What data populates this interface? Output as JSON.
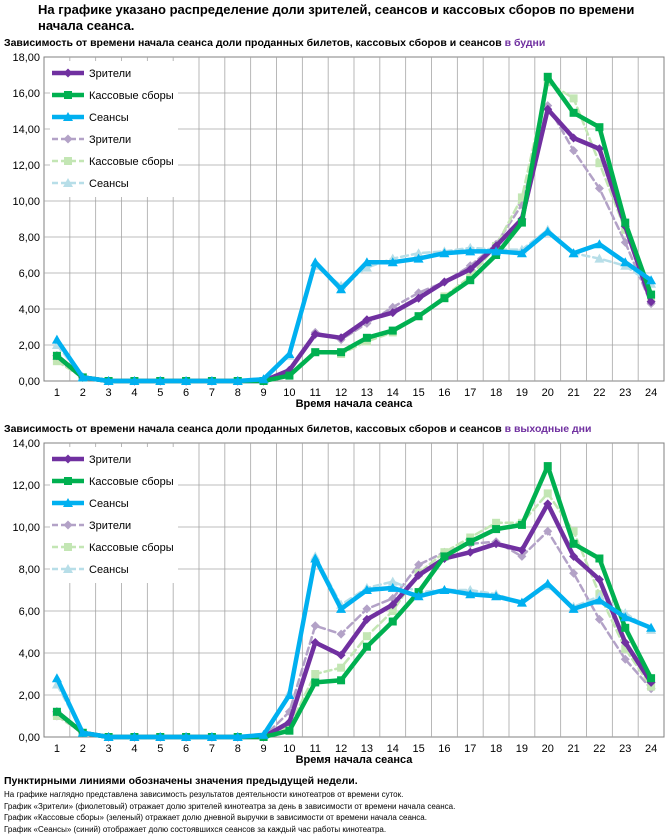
{
  "page": {
    "title": "На графике указано распределение доли зрителей, сеансов и кассовых сборов по времени начала сеанса."
  },
  "footnotes": {
    "bold": "Пунктирными линиями обозначены значения предыдущей недели.",
    "lines": [
      "На графике наглядно представлена зависимость результатов деятельности кинотеатров от времени суток.",
      "График «Зрители» (фиолетовый)  отражает долю зрителей кинотеатра за день в зависимости от времени  начала сеанса.",
      "График «Кассовые сборы» (зеленый) отражает долю дневной выручки в зависимости от времени начала сеанса.",
      "График «Сеансы» (синий) отображает долю состоявшихся сеансов  за каждый час работы кинотеатра."
    ]
  },
  "colors": {
    "viewers": "#7030a0",
    "box_office": "#00b050",
    "sessions": "#00b0f0",
    "viewers_prev": "#b3a2c7",
    "box_office_prev": "#c3e6b4",
    "sessions_prev": "#b7dee8",
    "highlight": "#7030a0"
  },
  "chart_data": [
    {
      "type": "line",
      "title": "Зависимость от времени начала сеанса доли проданных билетов, кассовых сборов и сеансов",
      "title_highlight": "в будни",
      "xlabel": "Время начала сеанса",
      "ylabel": "",
      "ylim": [
        0,
        18
      ],
      "yticks": [
        "0,00",
        "2,00",
        "4,00",
        "6,00",
        "8,00",
        "10,00",
        "12,00",
        "14,00",
        "16,00",
        "18,00"
      ],
      "grid": true,
      "legend_position": "top-left",
      "x": [
        1,
        2,
        3,
        4,
        5,
        6,
        7,
        8,
        9,
        10,
        11,
        12,
        13,
        14,
        15,
        16,
        17,
        18,
        19,
        20,
        21,
        22,
        23,
        24
      ],
      "series": [
        {
          "name": "Зрители",
          "style": "solid",
          "color_key": "viewers",
          "marker": "diamond",
          "values": [
            1.4,
            0.2,
            0.0,
            0.0,
            0.0,
            0.0,
            0.0,
            0.0,
            0.0,
            0.6,
            2.6,
            2.4,
            3.4,
            3.8,
            4.6,
            5.5,
            6.2,
            7.5,
            9.0,
            15.1,
            13.5,
            12.9,
            8.6,
            4.4
          ]
        },
        {
          "name": "Кассовые сборы",
          "style": "solid",
          "color_key": "box_office",
          "marker": "square",
          "values": [
            1.4,
            0.2,
            0.0,
            0.0,
            0.0,
            0.0,
            0.0,
            0.0,
            0.0,
            0.3,
            1.6,
            1.6,
            2.4,
            2.8,
            3.6,
            4.6,
            5.6,
            7.0,
            8.8,
            16.9,
            14.9,
            14.1,
            8.8,
            4.8
          ]
        },
        {
          "name": "Сеансы",
          "style": "solid",
          "color_key": "sessions",
          "marker": "triangle",
          "values": [
            2.3,
            0.2,
            0.0,
            0.0,
            0.0,
            0.0,
            0.0,
            0.0,
            0.1,
            1.5,
            6.6,
            5.1,
            6.6,
            6.6,
            6.8,
            7.1,
            7.2,
            7.2,
            7.1,
            8.3,
            7.1,
            7.6,
            6.6,
            5.6
          ]
        },
        {
          "name": "Зрители",
          "style": "dashed",
          "color_key": "viewers_prev",
          "marker": "diamond",
          "values": [
            1.2,
            0.2,
            0.0,
            0.0,
            0.0,
            0.0,
            0.0,
            0.0,
            0.0,
            0.6,
            2.7,
            2.3,
            3.2,
            4.1,
            4.9,
            5.5,
            6.4,
            7.6,
            9.8,
            15.3,
            12.8,
            10.7,
            7.7,
            4.3
          ]
        },
        {
          "name": "Кассовые сборы",
          "style": "dashed",
          "color_key": "box_office_prev",
          "marker": "square",
          "values": [
            1.1,
            0.2,
            0.0,
            0.0,
            0.0,
            0.0,
            0.0,
            0.0,
            0.0,
            0.3,
            1.6,
            1.5,
            2.2,
            2.7,
            3.6,
            4.7,
            5.8,
            7.5,
            10.2,
            16.6,
            15.7,
            12.1,
            8.4,
            4.6
          ]
        },
        {
          "name": "Сеансы",
          "style": "dashed",
          "color_key": "sessions_prev",
          "marker": "triangle",
          "values": [
            2.0,
            0.2,
            0.0,
            0.0,
            0.0,
            0.0,
            0.0,
            0.0,
            0.1,
            1.4,
            6.4,
            5.3,
            6.3,
            6.8,
            7.1,
            7.2,
            7.4,
            7.3,
            7.3,
            8.4,
            7.1,
            6.8,
            6.4,
            5.4
          ]
        }
      ]
    },
    {
      "type": "line",
      "title": "Зависимость от времени начала сеанса доли проданных билетов, кассовых сборов и сеансов",
      "title_highlight": "в выходные дни",
      "xlabel": "Время начала сеанса",
      "ylabel": "",
      "ylim": [
        0,
        14
      ],
      "yticks": [
        "0,00",
        "2,00",
        "4,00",
        "6,00",
        "8,00",
        "10,00",
        "12,00",
        "14,00"
      ],
      "grid": true,
      "legend_position": "top-left",
      "x": [
        1,
        2,
        3,
        4,
        5,
        6,
        7,
        8,
        9,
        10,
        11,
        12,
        13,
        14,
        15,
        16,
        17,
        18,
        19,
        20,
        21,
        22,
        23,
        24
      ],
      "series": [
        {
          "name": "Зрители",
          "style": "solid",
          "color_key": "viewers",
          "marker": "diamond",
          "values": [
            1.2,
            0.2,
            0.0,
            0.0,
            0.0,
            0.0,
            0.0,
            0.0,
            0.0,
            0.7,
            4.5,
            3.9,
            5.6,
            6.3,
            7.7,
            8.5,
            8.8,
            9.2,
            8.9,
            11.1,
            8.6,
            7.5,
            4.5,
            2.6
          ]
        },
        {
          "name": "Кассовые сборы",
          "style": "solid",
          "color_key": "box_office",
          "marker": "square",
          "values": [
            1.2,
            0.2,
            0.0,
            0.0,
            0.0,
            0.0,
            0.0,
            0.0,
            0.0,
            0.3,
            2.6,
            2.7,
            4.3,
            5.5,
            6.9,
            8.6,
            9.3,
            9.9,
            10.1,
            12.9,
            9.2,
            8.5,
            5.2,
            2.8
          ]
        },
        {
          "name": "Сеансы",
          "style": "solid",
          "color_key": "sessions",
          "marker": "triangle",
          "values": [
            2.8,
            0.2,
            0.0,
            0.0,
            0.0,
            0.0,
            0.0,
            0.0,
            0.1,
            2.0,
            8.5,
            6.1,
            7.0,
            7.1,
            6.7,
            7.0,
            6.8,
            6.7,
            6.4,
            7.3,
            6.1,
            6.5,
            5.7,
            5.2
          ]
        },
        {
          "name": "Зрители",
          "style": "dashed",
          "color_key": "viewers_prev",
          "marker": "diamond",
          "values": [
            1.0,
            0.2,
            0.0,
            0.0,
            0.0,
            0.0,
            0.0,
            0.0,
            0.0,
            1.2,
            5.3,
            4.9,
            6.1,
            6.6,
            8.2,
            8.8,
            9.2,
            9.3,
            8.6,
            9.8,
            7.8,
            5.6,
            3.7,
            2.3
          ]
        },
        {
          "name": "Кассовые сборы",
          "style": "dashed",
          "color_key": "box_office_prev",
          "marker": "square",
          "values": [
            1.0,
            0.2,
            0.0,
            0.0,
            0.0,
            0.0,
            0.0,
            0.0,
            0.0,
            0.5,
            3.0,
            3.3,
            4.8,
            6.0,
            7.8,
            8.8,
            9.5,
            10.2,
            10.2,
            11.6,
            9.8,
            6.8,
            4.2,
            2.4
          ]
        },
        {
          "name": "Сеансы",
          "style": "dashed",
          "color_key": "sessions_prev",
          "marker": "triangle",
          "values": [
            2.5,
            0.2,
            0.0,
            0.0,
            0.0,
            0.0,
            0.0,
            0.0,
            0.1,
            2.1,
            8.6,
            6.3,
            7.1,
            7.4,
            6.9,
            7.0,
            7.0,
            6.8,
            6.4,
            7.2,
            6.2,
            6.7,
            5.9,
            5.1
          ]
        }
      ]
    }
  ]
}
